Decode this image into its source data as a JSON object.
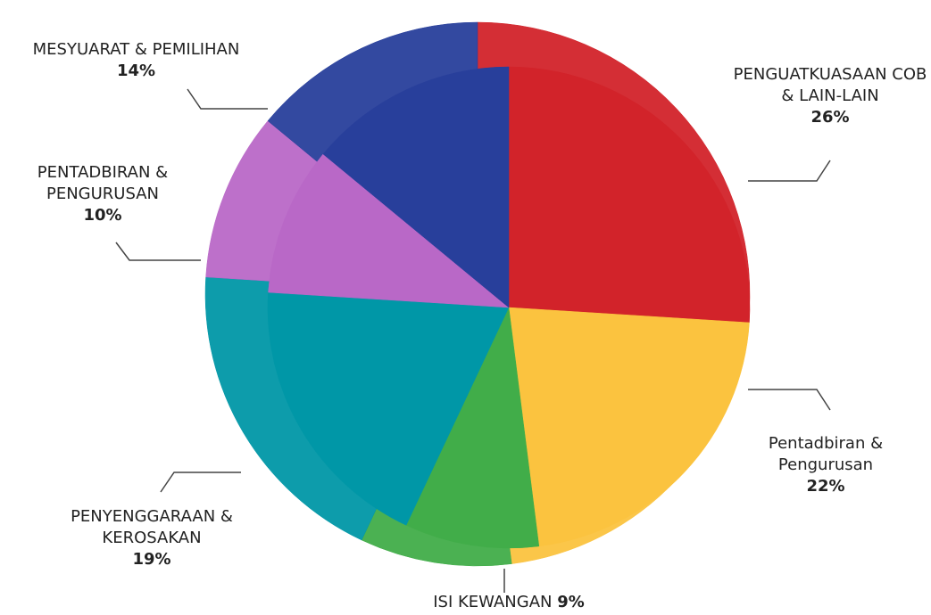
{
  "chart_data": {
    "type": "pie",
    "categories": [
      "PENGUATKUASAAN COB & LAIN-LAIN",
      "Pentadbiran & Pengurusan",
      "ISI KEWANGAN",
      "PENYENGGARAAN & KEROSAKAN",
      "PENTADBIRAN & PENGURUSAN",
      "MESYUARAT & PEMILIHAN"
    ],
    "values": [
      26,
      22,
      9,
      19,
      10,
      14
    ],
    "value_labels": [
      "26%",
      "22%",
      "9%",
      "19%",
      "10%",
      "14%"
    ],
    "colors": [
      "#d2232a",
      "#fbc33f",
      "#41ad49",
      "#0097a7",
      "#b968c7",
      "#283f9b"
    ]
  }
}
